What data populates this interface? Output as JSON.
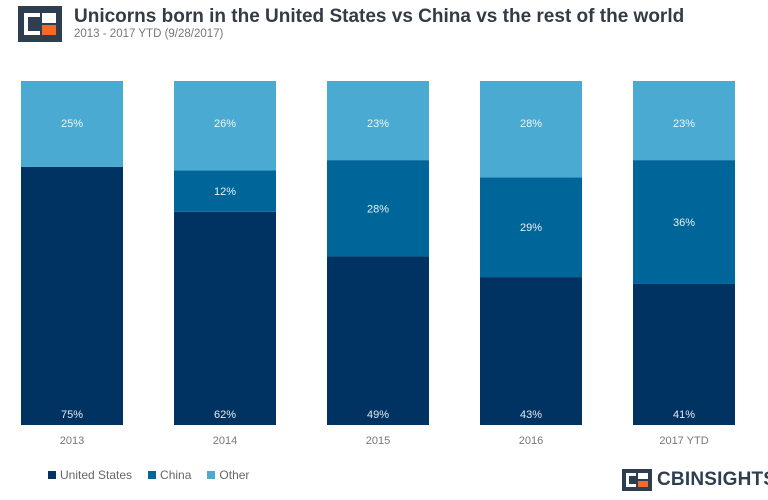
{
  "header": {
    "title": "Unicorns born in the United States vs China vs the rest of the world",
    "subtitle": "2013 - 2017 YTD (9/28/2017)"
  },
  "brand": {
    "name": "CBINSIGHTS",
    "colors": {
      "dark": "#2d3e50",
      "orange": "#f26b2a"
    }
  },
  "colors": {
    "united_states": "#003262",
    "china": "#00669a",
    "other": "#4aaad2",
    "axis_text": "#777777"
  },
  "chart_data": {
    "type": "bar",
    "stacked": true,
    "percent": true,
    "categories": [
      "2013",
      "2014",
      "2015",
      "2016",
      "2017 YTD"
    ],
    "series": [
      {
        "name": "United States",
        "values": [
          75,
          62,
          49,
          43,
          41
        ],
        "labels": [
          "75%",
          "62%",
          "49%",
          "43%",
          "41%"
        ]
      },
      {
        "name": "China",
        "values": [
          0,
          12,
          28,
          29,
          36
        ],
        "labels": [
          "",
          "12%",
          "28%",
          "29%",
          "36%"
        ]
      },
      {
        "name": "Other",
        "values": [
          25,
          26,
          23,
          28,
          23
        ],
        "labels": [
          "25%",
          "26%",
          "23%",
          "28%",
          "23%"
        ]
      }
    ],
    "ylim": [
      0,
      100
    ],
    "legend": "bottom-left",
    "grid": false
  }
}
